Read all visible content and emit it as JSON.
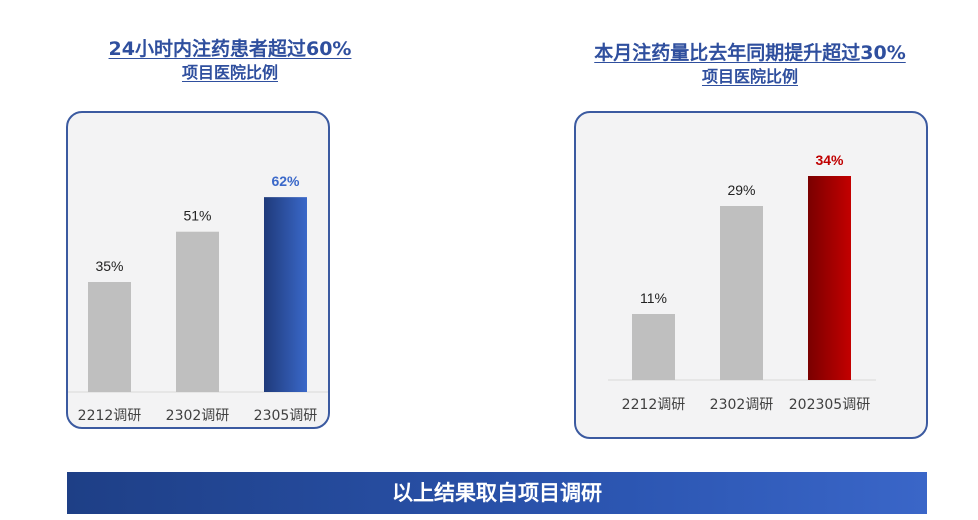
{
  "header": {
    "left_title_line1": "24小时内注药患者超过60%",
    "left_title_line2": "项目医院比例",
    "right_title_line1": "本月注药量比去年同期提升超过30%",
    "right_title_line2": "项目医院比例"
  },
  "colors": {
    "bar_gray": "#bfbfbf",
    "highlight_blue_dark": "#1f3a7a",
    "highlight_blue_light": "#3a68c9",
    "highlight_red_dark": "#7a0000",
    "highlight_red_light": "#c30000",
    "value_blue": "#3a68c9",
    "value_red": "#c00000",
    "box_border": "#3b5aa0",
    "box_fill": "#f3f3f4",
    "banner": "#2c56b2"
  },
  "chart_data": [
    {
      "type": "bar",
      "title": "24小时内注药患者超过60% 项目医院比例",
      "categories": [
        "2212调研",
        "2302调研",
        "2305调研"
      ],
      "values": [
        35,
        51,
        62
      ],
      "value_labels": [
        "35%",
        "51%",
        "62%"
      ],
      "unit": "%",
      "highlight_index": 2,
      "highlight_color": "blue",
      "ylim": [
        0,
        70
      ],
      "grid": false,
      "legend": "none"
    },
    {
      "type": "bar",
      "title": "本月注药量比去年同期提升超过30% 项目医院比例",
      "categories": [
        "2212调研",
        "2302调研",
        "202305调研"
      ],
      "values": [
        11,
        29,
        34
      ],
      "value_labels": [
        "11%",
        "29%",
        "34%"
      ],
      "unit": "%",
      "highlight_index": 2,
      "highlight_color": "red",
      "ylim": [
        0,
        40
      ],
      "grid": false,
      "legend": "none"
    }
  ],
  "footer": {
    "text": "以上结果取自项目调研"
  }
}
